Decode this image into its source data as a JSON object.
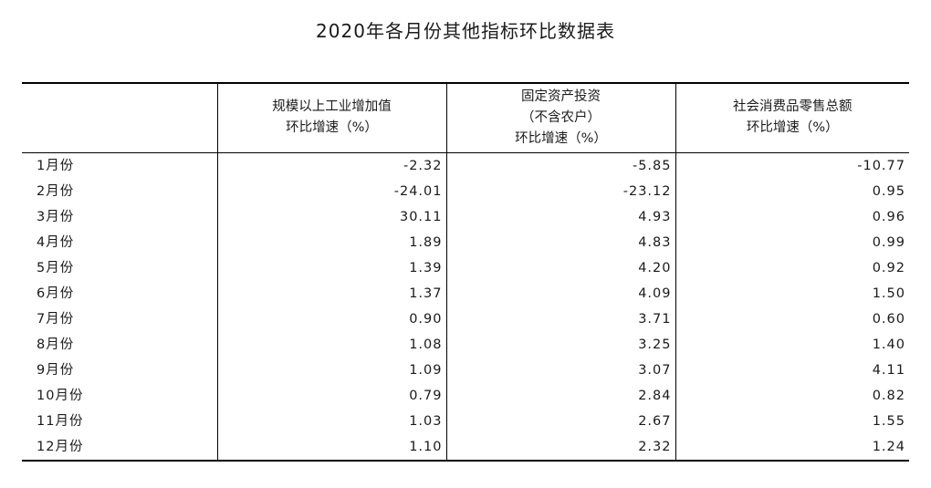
{
  "title": "2020年各月份其他指标环比数据表",
  "table": {
    "headers": [
      {
        "lines": [
          ""
        ]
      },
      {
        "lines": [
          "规模以上工业增加值",
          "环比增速（%）"
        ]
      },
      {
        "lines": [
          "固定资产投资",
          "（不含农户）",
          "环比增速（%）"
        ]
      },
      {
        "lines": [
          "社会消费品零售总额",
          "环比增速（%）"
        ]
      }
    ],
    "rows": [
      {
        "month": "1月份",
        "industry": "-2.32",
        "investment": "-5.85",
        "retail": "-10.77"
      },
      {
        "month": "2月份",
        "industry": "-24.01",
        "investment": "-23.12",
        "retail": "0.95"
      },
      {
        "month": "3月份",
        "industry": "30.11",
        "investment": "4.93",
        "retail": "0.96"
      },
      {
        "month": "4月份",
        "industry": "1.89",
        "investment": "4.83",
        "retail": "0.99"
      },
      {
        "month": "5月份",
        "industry": "1.39",
        "investment": "4.20",
        "retail": "0.92"
      },
      {
        "month": "6月份",
        "industry": "1.37",
        "investment": "4.09",
        "retail": "1.50"
      },
      {
        "month": "7月份",
        "industry": "0.90",
        "investment": "3.71",
        "retail": "0.60"
      },
      {
        "month": "8月份",
        "industry": "1.08",
        "investment": "3.25",
        "retail": "1.40"
      },
      {
        "month": "9月份",
        "industry": "1.09",
        "investment": "3.07",
        "retail": "4.11"
      },
      {
        "month": "10月份",
        "industry": "0.79",
        "investment": "2.84",
        "retail": "0.82"
      },
      {
        "month": "11月份",
        "industry": "1.03",
        "investment": "2.67",
        "retail": "1.55"
      },
      {
        "month": "12月份",
        "industry": "1.10",
        "investment": "2.32",
        "retail": "1.24"
      }
    ]
  }
}
